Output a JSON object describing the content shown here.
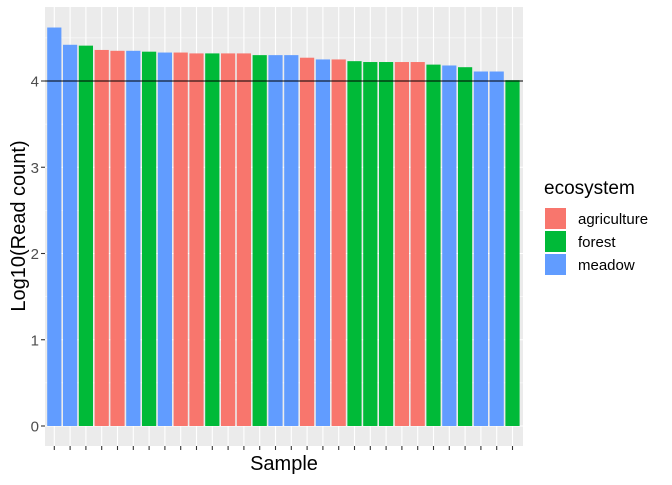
{
  "chart_data": {
    "type": "bar",
    "xlabel": "Sample",
    "ylabel": "Log10(Read count)",
    "ylim": [
      0,
      4.72
    ],
    "yticks": [
      0,
      1,
      2,
      3,
      4
    ],
    "reference_line": 4,
    "x_tick_labels_shown": false,
    "grid": true,
    "legend": {
      "title": "ecosystem",
      "position": "right",
      "items": [
        {
          "label": "agriculture",
          "color": "#F8766D"
        },
        {
          "label": "forest",
          "color": "#00BA38"
        },
        {
          "label": "meadow",
          "color": "#619CFF"
        }
      ]
    },
    "bars": [
      {
        "group": "meadow",
        "value": 4.62
      },
      {
        "group": "meadow",
        "value": 4.42
      },
      {
        "group": "forest",
        "value": 4.41
      },
      {
        "group": "agriculture",
        "value": 4.36
      },
      {
        "group": "agriculture",
        "value": 4.35
      },
      {
        "group": "meadow",
        "value": 4.35
      },
      {
        "group": "forest",
        "value": 4.34
      },
      {
        "group": "meadow",
        "value": 4.33
      },
      {
        "group": "agriculture",
        "value": 4.33
      },
      {
        "group": "agriculture",
        "value": 4.32
      },
      {
        "group": "forest",
        "value": 4.32
      },
      {
        "group": "agriculture",
        "value": 4.32
      },
      {
        "group": "agriculture",
        "value": 4.32
      },
      {
        "group": "forest",
        "value": 4.3
      },
      {
        "group": "meadow",
        "value": 4.3
      },
      {
        "group": "meadow",
        "value": 4.3
      },
      {
        "group": "agriculture",
        "value": 4.27
      },
      {
        "group": "meadow",
        "value": 4.25
      },
      {
        "group": "agriculture",
        "value": 4.25
      },
      {
        "group": "forest",
        "value": 4.23
      },
      {
        "group": "forest",
        "value": 4.22
      },
      {
        "group": "forest",
        "value": 4.22
      },
      {
        "group": "agriculture",
        "value": 4.22
      },
      {
        "group": "agriculture",
        "value": 4.22
      },
      {
        "group": "forest",
        "value": 4.19
      },
      {
        "group": "meadow",
        "value": 4.18
      },
      {
        "group": "forest",
        "value": 4.16
      },
      {
        "group": "meadow",
        "value": 4.11
      },
      {
        "group": "meadow",
        "value": 4.11
      },
      {
        "group": "forest",
        "value": 4.01
      }
    ]
  }
}
